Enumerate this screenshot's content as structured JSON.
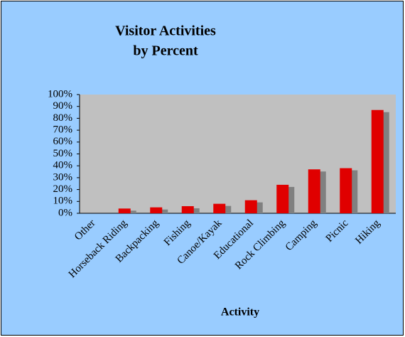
{
  "chart_data": {
    "type": "bar",
    "title": [
      "Visitor Activities",
      "by Percent"
    ],
    "x_label": "Activity",
    "categories": [
      "Other",
      "Horseback Riding",
      "Backpacking",
      "Fishing",
      "Canoe/Kayak",
      "Educational",
      "Rock Climbing",
      "Camping",
      "Picnic",
      "Hiking"
    ],
    "values": [
      0,
      4,
      5,
      6,
      8,
      11,
      24,
      37,
      38,
      87
    ],
    "color": "#e00000",
    "ylim": [
      0,
      100
    ],
    "yticks": [
      {
        "value": 0,
        "label": "0%"
      },
      {
        "value": 10,
        "label": "10%"
      },
      {
        "value": 20,
        "label": "20%"
      },
      {
        "value": 30,
        "label": "30%"
      },
      {
        "value": 40,
        "label": "40%"
      },
      {
        "value": 50,
        "label": "50%"
      },
      {
        "value": 60,
        "label": "60%"
      },
      {
        "value": 70,
        "label": "70%"
      },
      {
        "value": 80,
        "label": "80%"
      },
      {
        "value": 90,
        "label": "90%"
      },
      {
        "value": 100,
        "label": "100%"
      }
    ],
    "grid": false
  }
}
